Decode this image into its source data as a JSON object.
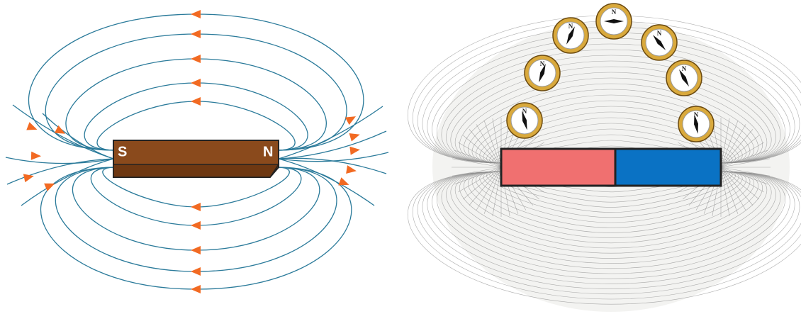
{
  "magnet_left": {
    "south": "S",
    "north": "N"
  },
  "compasses": [
    {
      "label": "N"
    },
    {
      "label": "N"
    },
    {
      "label": "N"
    },
    {
      "label": "N"
    },
    {
      "label": "N"
    },
    {
      "label": "N"
    },
    {
      "label": "N"
    }
  ]
}
